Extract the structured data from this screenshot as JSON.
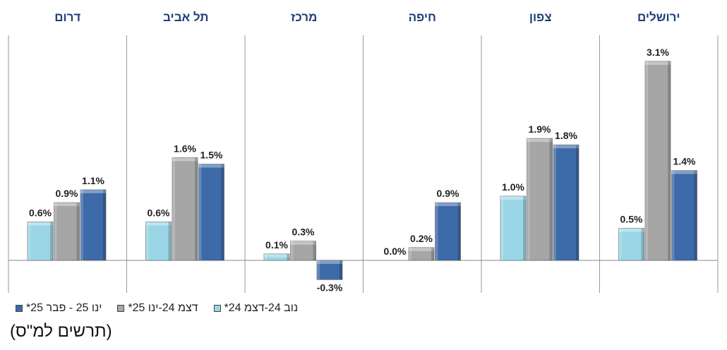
{
  "chart_data": {
    "type": "bar",
    "categories": [
      "דרום",
      "תל אביב",
      "מרכז",
      "חיפה",
      "צפון",
      "ירושלים"
    ],
    "series": [
      {
        "name": "נוב 24-דצמ 24*",
        "values": [
          0.6,
          0.6,
          0.1,
          0.0,
          1.0,
          0.5
        ],
        "color": "#9ad6e6"
      },
      {
        "name": "דצמ 24-ינו 25*",
        "values": [
          0.9,
          1.6,
          0.3,
          0.2,
          1.9,
          3.1
        ],
        "color": "#a6a6a6"
      },
      {
        "name": "ינו 25 - פבר 25*",
        "values": [
          1.1,
          1.5,
          -0.3,
          0.9,
          1.8,
          1.4
        ],
        "color": "#3d6aa8"
      }
    ],
    "data_labels": [
      [
        "0.6%",
        "0.9%",
        "1.1%"
      ],
      [
        "0.6%",
        "1.6%",
        "1.5%"
      ],
      [
        "0.1%",
        "0.3%",
        "-0.3%"
      ],
      [
        "0.0%",
        "0.2%",
        "0.9%"
      ],
      [
        "1.0%",
        "1.9%",
        "1.8%"
      ],
      [
        "0.5%",
        "3.1%",
        "1.4%"
      ]
    ],
    "ylim": [
      -0.5,
      3.3
    ],
    "category_label_color": "#1f3f7a",
    "unit_note": "(תרשים למ\"ס)",
    "legend_position": "bottom-left",
    "grid": false
  }
}
